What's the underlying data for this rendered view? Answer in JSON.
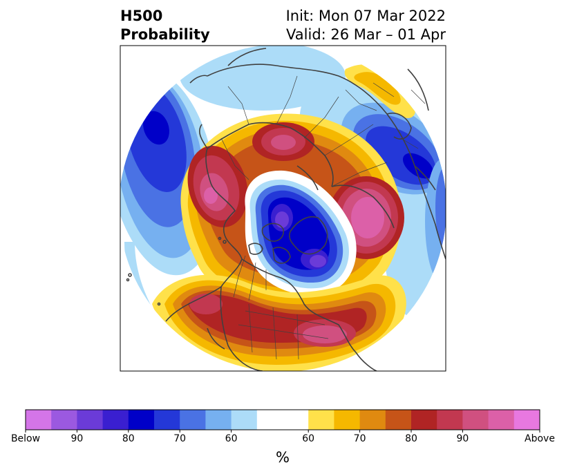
{
  "title": {
    "left_line1": "H500",
    "left_line2": "Probability",
    "right_line1": "Init: Mon 07 Mar 2022",
    "right_line2": "Valid: 26 Mar – 01 Apr"
  },
  "colorbar": {
    "unit": "%",
    "tick_labels": [
      "Below",
      "90",
      "80",
      "70",
      "60",
      "60",
      "70",
      "80",
      "90",
      "Above"
    ],
    "below_colors": [
      "#d475e8",
      "#9b59e0",
      "#6b3bd8",
      "#3a1fd0",
      "#0000c8",
      "#2438d8",
      "#4a72e4",
      "#76b0f0",
      "#acdcf8"
    ],
    "neutral_color": "#ffffff",
    "above_colors": [
      "#ffe14a",
      "#f5b800",
      "#e08a10",
      "#c65418",
      "#b02424",
      "#c23850",
      "#d05080",
      "#dc60a8",
      "#e878e0"
    ]
  },
  "map": {
    "projection": "north-polar-stereographic",
    "colors": {
      "land_outline": "#404040",
      "frame": "#000000"
    }
  }
}
